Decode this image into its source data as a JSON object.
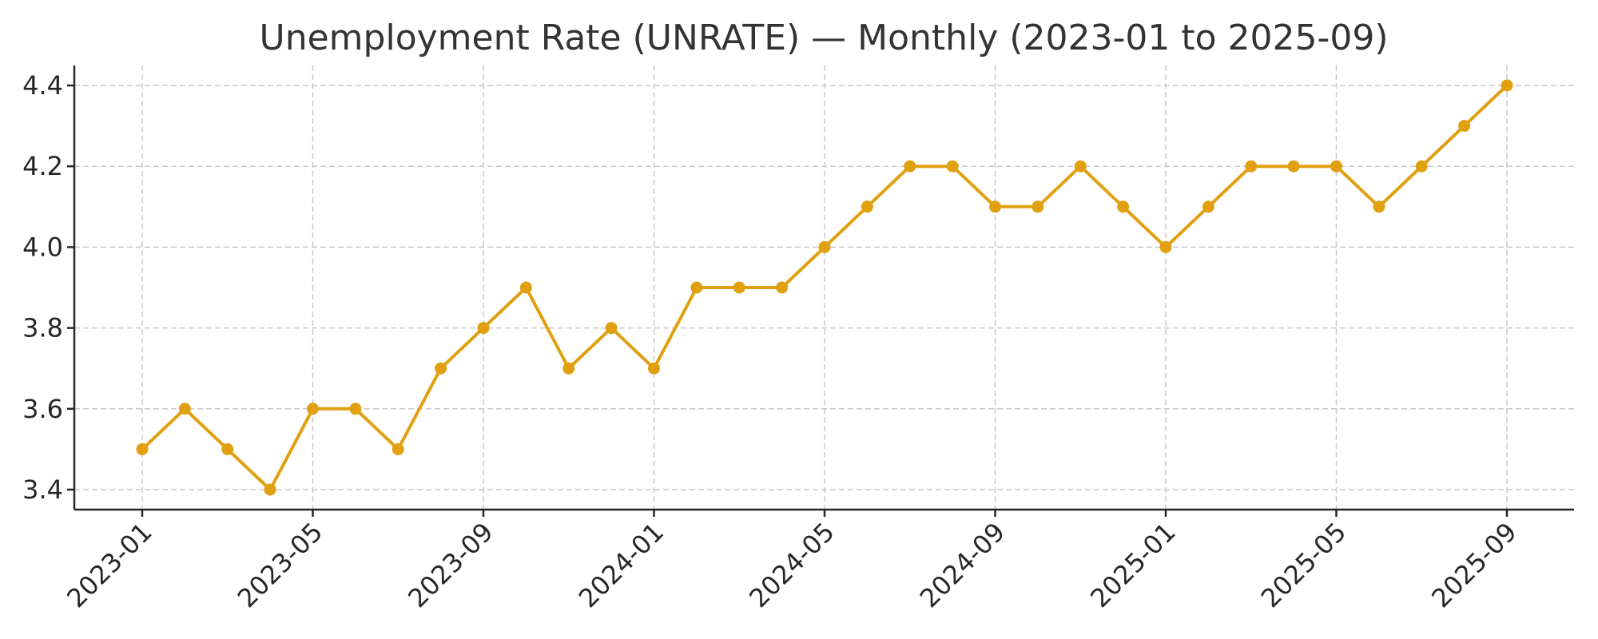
{
  "chart_data": {
    "type": "line",
    "title": "Unemployment Rate (UNRATE) — Monthly (2023-01 to 2025-09)",
    "xlabel": "",
    "ylabel": "",
    "x": [
      "2023-01",
      "2023-02",
      "2023-03",
      "2023-04",
      "2023-05",
      "2023-06",
      "2023-07",
      "2023-08",
      "2023-09",
      "2023-10",
      "2023-11",
      "2023-12",
      "2024-01",
      "2024-02",
      "2024-03",
      "2024-04",
      "2024-05",
      "2024-06",
      "2024-07",
      "2024-08",
      "2024-09",
      "2024-10",
      "2024-11",
      "2024-12",
      "2025-01",
      "2025-02",
      "2025-03",
      "2025-04",
      "2025-05",
      "2025-06",
      "2025-07",
      "2025-08",
      "2025-09"
    ],
    "series": [
      {
        "values": [
          3.5,
          3.6,
          3.5,
          3.4,
          3.6,
          3.6,
          3.5,
          3.7,
          3.8,
          3.9,
          3.7,
          3.8,
          3.7,
          3.9,
          3.9,
          3.9,
          4.0,
          4.1,
          4.2,
          4.2,
          4.1,
          4.1,
          4.2,
          4.1,
          4.0,
          4.1,
          4.2,
          4.2,
          4.2,
          4.1,
          4.2,
          4.3,
          4.4
        ]
      }
    ],
    "xticks": [
      "2023-01",
      "2023-05",
      "2023-09",
      "2024-01",
      "2024-05",
      "2024-09",
      "2025-01",
      "2025-05",
      "2025-09"
    ],
    "yticks": [
      "3.4",
      "3.6",
      "3.8",
      "4.0",
      "4.2",
      "4.4"
    ],
    "ylim": [
      3.35,
      4.45
    ],
    "grid": true,
    "legend": "none",
    "colors": {
      "series": "#E0A010",
      "grid": "#c8c8c8",
      "axis": "#262626"
    }
  }
}
